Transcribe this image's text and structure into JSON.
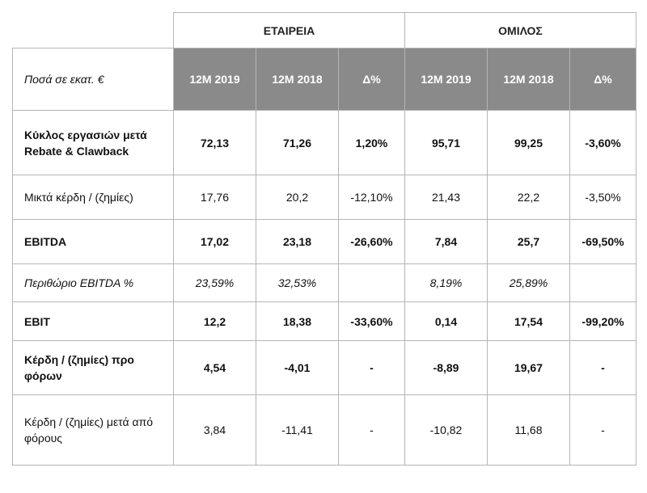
{
  "groups": {
    "company": "ΕΤΑΙΡΕΙΑ",
    "group": "ΟΜΙΛΟΣ"
  },
  "header": {
    "unit_label": "Ποσά σε εκατ. €",
    "columns": [
      "12M 2019",
      "12M 2018",
      "Δ%",
      "12M 2019",
      "12M 2018",
      "Δ%"
    ]
  },
  "rows": [
    {
      "label": "Κύκλος εργασιών μετά Rebate & Clawback",
      "values": [
        "72,13",
        "71,26",
        "1,20%",
        "95,71",
        "99,25",
        "-3,60%"
      ]
    },
    {
      "label": "Μικτά κέρδη / (ζημίες)",
      "values": [
        "17,76",
        "20,2",
        "-12,10%",
        "21,43",
        "22,2",
        "-3,50%"
      ]
    },
    {
      "label": "EBITDA",
      "values": [
        "17,02",
        "23,18",
        "-26,60%",
        "7,84",
        "25,7",
        "-69,50%"
      ]
    },
    {
      "label": "Περιθώριο EBITDA %",
      "values": [
        "23,59%",
        "32,53%",
        "",
        "8,19%",
        "25,89%",
        ""
      ]
    },
    {
      "label": "EBIT",
      "values": [
        "12,2",
        "18,38",
        "-33,60%",
        "0,14",
        "17,54",
        "-99,20%"
      ]
    },
    {
      "label": "Κέρδη / (ζημίες) προ φόρων",
      "values": [
        "4,54",
        "-4,01",
        "-",
        "-8,89",
        "19,67",
        "-"
      ]
    },
    {
      "label": "Κέρδη / (ζημίες) μετά από φόρους",
      "values": [
        "3,84",
        "-11,41",
        "-",
        "-10,82",
        "11,68",
        "-"
      ]
    }
  ]
}
